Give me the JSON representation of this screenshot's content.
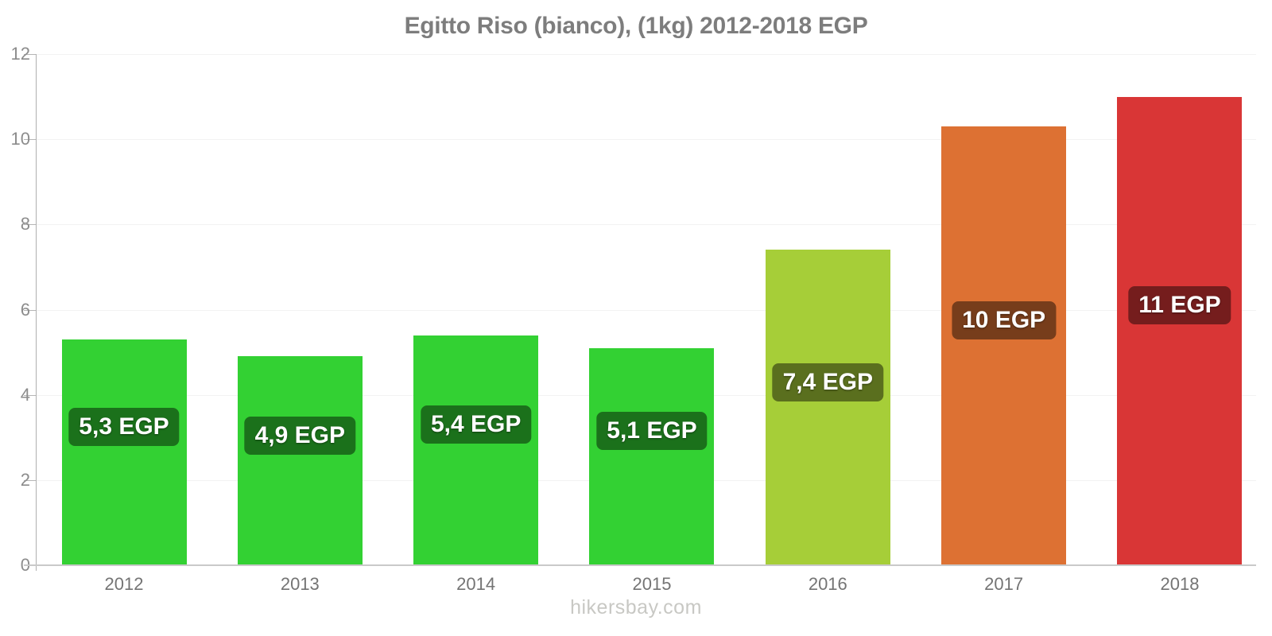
{
  "footer": {
    "text": "hikersbay.com"
  },
  "colors": {
    "green_bar": "#33d133",
    "yellow_green_bar": "#a6ce38",
    "orange_bar": "#dd7133",
    "red_bar": "#d93636",
    "label_box_overlay": "rgba(0,0,0,0.46)",
    "title_gray": "#7d7d7d",
    "axis_line": "#b0b0b0",
    "baseline": "#c9c9c9",
    "gridline": "#f2f2f2",
    "y_label_gray": "#8c8c8c",
    "x_label_gray": "#747474",
    "watermark_gray": "#c8c8c4"
  },
  "chart_data": {
    "type": "bar",
    "title": "Egitto Riso (bianco), (1kg) 2012-2018 EGP",
    "currency": "EGP",
    "categories": [
      "2012",
      "2013",
      "2014",
      "2015",
      "2016",
      "2017",
      "2018"
    ],
    "values": [
      5.3,
      4.9,
      5.4,
      5.1,
      7.4,
      10.3,
      11
    ],
    "bar_labels": [
      "5,3 EGP",
      "4,9 EGP",
      "5,4 EGP",
      "5,1 EGP",
      "7,4 EGP",
      "10 EGP",
      "11 EGP"
    ],
    "bar_colors": [
      "#33d133",
      "#33d133",
      "#33d133",
      "#33d133",
      "#a6ce38",
      "#dd7133",
      "#d93636"
    ],
    "xlabel": "",
    "ylabel": "",
    "ylim": [
      0,
      12
    ],
    "yticks": [
      0,
      2,
      4,
      6,
      8,
      10,
      12
    ],
    "grid": "faint horizontal gridlines at even values",
    "legend": "none"
  }
}
